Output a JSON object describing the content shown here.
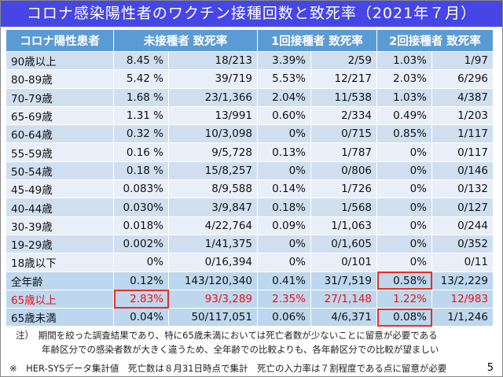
{
  "title": "コロナ感染陽性者のワクチン接種回数と致死率（2021年７月）",
  "headers": [
    "コロナ陽性患者",
    "未接種者 致死率",
    "1回接種者 致死率",
    "2回接種者 致死率"
  ],
  "rows": [
    [
      "90歳以上",
      "8.45 %",
      "18/213",
      "3.39%",
      "2/59",
      "1.03%",
      "1/97"
    ],
    [
      "80-89歳",
      "5.42 %",
      "39/719",
      "5.53%",
      "12/217",
      "2.03%",
      "6/296"
    ],
    [
      "70-79歳",
      "1.68 %",
      "23/1,366",
      "2.04%",
      "11/538",
      "1.03%",
      "4/387"
    ],
    [
      "65-69歳",
      "1.31 %",
      "13/991",
      "0.60%",
      "2/334",
      "0.49%",
      "1/203"
    ],
    [
      "60-64歳",
      "0.32 %",
      "10/3,098",
      "0%",
      "0/715",
      "0.85%",
      "1/117"
    ],
    [
      "55-59歳",
      "0.16 %",
      "9/5,728",
      "0.13%",
      "1/787",
      "0%",
      "0/117"
    ],
    [
      "50-54歳",
      "0.18 %",
      "15/8,257",
      "0%",
      "0/806",
      "0%",
      "0/146"
    ],
    [
      "45-49歳",
      "0.083%",
      "8/9,588",
      "0.14%",
      "1/726",
      "0%",
      "0/132"
    ],
    [
      "40-44歳",
      "0.030%",
      "3/9,847",
      "0.18%",
      "1/568",
      "0%",
      "0/127"
    ],
    [
      "30-39歳",
      "0.018%",
      "4/22,764",
      "0.09%",
      "1/1,063",
      "0%",
      "0/244"
    ],
    [
      "19-29歳",
      "0.002%",
      "1/41,375",
      "0%",
      "0/1,605",
      "0%",
      "0/352"
    ],
    [
      "18歳以下",
      "0%",
      "0/16,394",
      "0%",
      "0/101",
      "0%",
      "0/11"
    ],
    [
      "全年齢",
      "0.12%",
      "143/120,340",
      "0.41%",
      "31/7,519",
      "0.58%",
      "13/2,229"
    ],
    [
      "65歳以上",
      "2.83%",
      "93/3,289",
      "2.35%",
      "27/1,148",
      "1.22%",
      "12/983"
    ],
    [
      "65歳未満",
      "0.04%",
      "50/117,051",
      "0.06%",
      "4/6,371",
      "0.08%",
      "1/1,246"
    ]
  ],
  "note_line1": "注）　期間を絞った調査結果であり、特に65歳未満においては死亡者数が少ないことに留意が必要である",
  "note_line2": "年齢区分での感染者数が大きく違うため、全年齢での比較よりも、各年齢区分での比較が望ましい",
  "footer": "※　HER-SYSデータ集計値　死亡数は８月31日時点で集計　死亡の入力率は７割程度である点に留意が必要",
  "page_number": "5"
}
